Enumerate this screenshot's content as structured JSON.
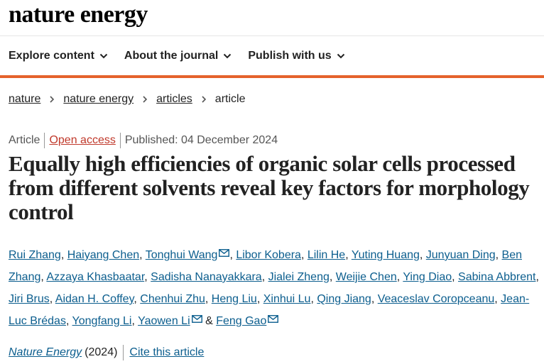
{
  "header": {
    "logo_text": "nature energy"
  },
  "nav": {
    "items": [
      {
        "label": "Explore content"
      },
      {
        "label": "About the journal"
      },
      {
        "label": "Publish with us"
      }
    ]
  },
  "breadcrumb": {
    "items": [
      "nature",
      "nature energy",
      "articles"
    ],
    "current": "article"
  },
  "meta": {
    "type": "Article",
    "access": "Open access",
    "published": "Published: 04 December 2024"
  },
  "title": "Equally high efficiencies of organic solar cells processed from different solvents reveal key factors for morphology control",
  "authors": [
    {
      "name": "Rui Zhang",
      "email": false
    },
    {
      "name": "Haiyang Chen",
      "email": false
    },
    {
      "name": "Tonghui Wang",
      "email": true
    },
    {
      "name": "Libor Kobera",
      "email": false
    },
    {
      "name": "Lilin He",
      "email": false
    },
    {
      "name": "Yuting Huang",
      "email": false
    },
    {
      "name": "Junyuan Ding",
      "email": false
    },
    {
      "name": "Ben Zhang",
      "email": false
    },
    {
      "name": "Azzaya Khasbaatar",
      "email": false
    },
    {
      "name": "Sadisha Nanayakkara",
      "email": false
    },
    {
      "name": "Jialei Zheng",
      "email": false
    },
    {
      "name": "Weijie Chen",
      "email": false
    },
    {
      "name": "Ying Diao",
      "email": false
    },
    {
      "name": "Sabina Abbrent",
      "email": false
    },
    {
      "name": "Jiri Brus",
      "email": false
    },
    {
      "name": "Aidan H. Coffey",
      "email": false
    },
    {
      "name": "Chenhui Zhu",
      "email": false
    },
    {
      "name": "Heng Liu",
      "email": false
    },
    {
      "name": "Xinhui Lu",
      "email": false
    },
    {
      "name": "Qing Jiang",
      "email": false
    },
    {
      "name": "Veaceslav Coropceanu",
      "email": false
    },
    {
      "name": "Jean-Luc Brédas",
      "email": false
    },
    {
      "name": "Yongfang Li",
      "email": false
    },
    {
      "name": "Yaowen Li",
      "email": true
    },
    {
      "name": "Feng Gao",
      "email": true
    }
  ],
  "author_separators": {
    "comma": ", ",
    "final": " & "
  },
  "citation": {
    "journal": "Nature Energy",
    "year": "(2024)",
    "cite_label": "Cite this article"
  },
  "colors": {
    "accent": "#e5622c",
    "link": "#0c5e8e",
    "open_access": "#c0392b"
  },
  "icons": {
    "nav_dropdown": "chevron-down-icon",
    "breadcrumb_separator": "chevron-right-icon",
    "author_contact": "mail-icon"
  }
}
